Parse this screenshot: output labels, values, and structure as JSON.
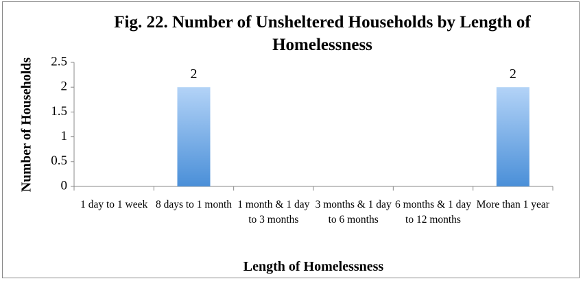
{
  "chart_data": {
    "type": "bar",
    "title": "Fig. 22. Number of Unsheltered Households by Length of Homelessness",
    "x_label": "Length of Homelessness",
    "y_label": "Number of Households",
    "categories": [
      "1 day to 1 week",
      "8 days to 1 month",
      "1 month & 1 day to 3 months",
      "3 months & 1 day to 6 months",
      "6 months & 1 day to 12 months",
      "More than 1 year"
    ],
    "values": [
      0,
      2,
      0,
      0,
      0,
      2
    ],
    "color": "#4a8fd8",
    "ylim": [
      0,
      2.5
    ],
    "yticks": [
      0,
      0.5,
      1,
      1.5,
      2,
      2.5
    ],
    "grid": false
  }
}
